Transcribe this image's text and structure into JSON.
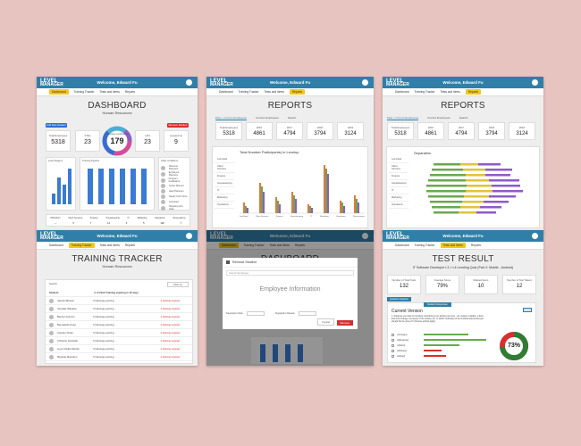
{
  "common": {
    "logo_line1": "LEVEL",
    "logo_line2": "MANAGER",
    "welcome": "Welcome, Edward Fu",
    "nav": [
      "Dashboard",
      "Training Tracker",
      "Tests and Items",
      "Reports"
    ]
  },
  "dashboard": {
    "title": "DASHBOARD",
    "subtitle": "Human Resources",
    "add_button": "Add New Student",
    "remove_button": "Remove Student",
    "stats": [
      {
        "label": "Total Employees",
        "value": "5318"
      },
      {
        "label": "FTEs",
        "value": "23"
      },
      {
        "label": "Complete Certification",
        "value": "179"
      },
      {
        "label": "L3/4",
        "value": "23"
      },
      {
        "label": "Leveled Up",
        "value": "9"
      }
    ],
    "chart_left_title": "Level Stage 9",
    "chart_mid_title": "Training Pipeline",
    "legend_title": "Other conditions",
    "legend_items": [
      "Discover Planners",
      "Employee Planners",
      "Program Facilitators",
      "Active Planner",
      "Hard Planners",
      "Nearly 0-No Tests",
      "Accepted",
      "Targeting and Goal"
    ],
    "dept_headers": [
      "HR/Admin",
      "Client Services",
      "Finance",
      "Housekeeping",
      "IT",
      "Marketing",
      "Operations",
      "Reservations"
    ],
    "dept_values": [
      "—",
      "5",
      "7",
      "14",
      "4",
      "5",
      "102",
      "7"
    ]
  },
  "reports1": {
    "title": "REPORTS",
    "tabs": [
      "Past + Current Employees",
      "Current Employees",
      "Search"
    ],
    "years": [
      {
        "label": "Total Employees",
        "value": "5318"
      },
      {
        "label": "2016",
        "value": "4861"
      },
      {
        "label": "2017",
        "value": "4794"
      },
      {
        "label": "2018",
        "value": "3794"
      },
      {
        "label": "2019",
        "value": "3124"
      }
    ],
    "chart_title": "Total Number Participants) in Levelup",
    "side_items": [
      "Led Hotel",
      "Client Services",
      "Finance",
      "Housekeeping",
      "IT",
      "Marketing",
      "Operations"
    ],
    "categories": [
      "Led Hotel",
      "Client Services",
      "Finance",
      "Housekeeping",
      "IT",
      "Marketing",
      "Operations",
      "Reservations"
    ]
  },
  "reports2": {
    "title": "REPORTS",
    "tabs": [
      "Past + Current Employees",
      "Current Employees",
      "Search"
    ],
    "years": [
      {
        "label": "Total Employees",
        "value": "5318"
      },
      {
        "label": "2016",
        "value": "4861"
      },
      {
        "label": "2017",
        "value": "4794"
      },
      {
        "label": "2018",
        "value": "3794"
      },
      {
        "label": "2019",
        "value": "3124"
      }
    ],
    "chart_title": "Separation",
    "side_items": [
      "Led Hotel",
      "Client Services",
      "Finance",
      "Housekeeping",
      "IT",
      "Marketing",
      "Operations"
    ]
  },
  "tracker": {
    "title": "TRAINING TRACKER",
    "subtitle": "Human Resources",
    "search": "Search",
    "filter": "Filter by",
    "col_student": "Student",
    "col_expiring": "# of 2012 Training expiring in 30 days",
    "rows": [
      {
        "name": "Jasmijn Bessel",
        "training": "3 trainings expiring",
        "status": "1 training expired"
      },
      {
        "name": "Jaroslav Nikolaev",
        "training": "3 trainings expiring",
        "status": "1 training expired"
      },
      {
        "name": "Benson Ferraro",
        "training": "3 trainings expiring",
        "status": "1 training expired"
      },
      {
        "name": "Bernadette Kusa",
        "training": "3 trainings expiring",
        "status": "1 training expired"
      },
      {
        "name": "Carolee Polsa",
        "training": "3 trainings expiring",
        "status": "1 training expired"
      },
      {
        "name": "Christine Nordwall",
        "training": "3 trainings expiring",
        "status": "1 training expired"
      },
      {
        "name": "Levon Deller-Reidst",
        "training": "3 trainings expiring",
        "status": "1 training expired"
      },
      {
        "name": "Marjorie Manzano",
        "training": "3 trainings expiring",
        "status": "1 training expired"
      }
    ]
  },
  "modal": {
    "page_title": "DASHBOARD",
    "page_subtitle": "Human Resources",
    "title": "Remove Student",
    "search_placeholder": "Search Employee",
    "body": "Employee Information",
    "date_label": "Separation Date",
    "reason_label": "Separation Reason",
    "cancel": "Cancel",
    "remove": "Remove"
  },
  "test": {
    "title": "TEST RESULT",
    "quiz_title": "IT Software Developer L3 > L4 Leveling Quiz (Part 2: Mobile - Android)",
    "stats": [
      {
        "label": "Number of Total Tests",
        "value": "132"
      },
      {
        "label": "Average Score",
        "value": "79%"
      },
      {
        "label": "Marked Items",
        "value": "10"
      },
      {
        "label": "Number of Test Takers",
        "value": "12"
      }
    ],
    "tab_results": "Question Analysis",
    "tab_responses": "Student Responses",
    "version": "Current Version",
    "question": "1. Suppose you want to introduce something in an activity just once - an instance variable, a field that wont change, the layout of the activity, etc. In which method(s) of the Android activity lifecycle should this be done in? (Choose all that apply)",
    "options": [
      "onCreate()",
      "onResume()",
      "onStart()",
      "onPause()",
      "onStop()"
    ],
    "pct": "73%"
  }
}
